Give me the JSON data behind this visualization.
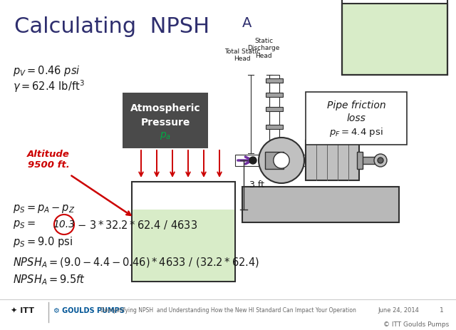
{
  "bg_color": "#ffffff",
  "title_color": "#2e2e6e",
  "text_color": "#1a1a1a",
  "red_color": "#cc0000",
  "gray_light": "#c0c0c0",
  "gray_mid": "#a0a0a0",
  "gray_dark": "#606060",
  "gray_base": "#b8b8b8",
  "tank_fill": "#d8ecc8",
  "dark_line": "#303030",
  "label_bg": "#4a4a4a",
  "purple": "#7030a0",
  "footer_sep_color": "#cccccc",
  "footer_text_color": "#666666",
  "footer_text": "Demystifying NPSH  and Understanding How the New HI Standard Can Impact Your Operation",
  "footer_date": "June 24, 2014",
  "footer_page": "1",
  "copyright": "© ITT Goulds Pumps"
}
